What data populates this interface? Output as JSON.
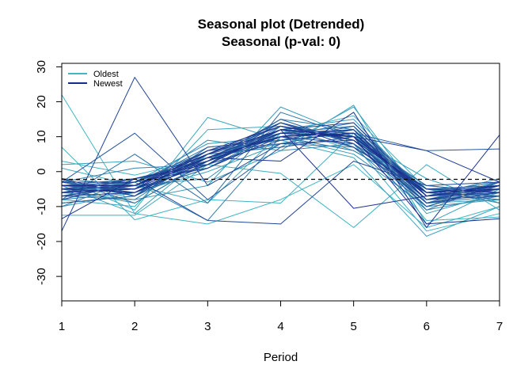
{
  "chart_data": {
    "type": "line",
    "title": "Seasonal plot (Detrended)",
    "subtitle": "Seasonal (p-val: 0)",
    "xlabel": "Period",
    "ylabel": "",
    "x": [
      1,
      2,
      3,
      4,
      5,
      6,
      7
    ],
    "xlim": [
      1,
      7
    ],
    "ylim": [
      -37,
      31
    ],
    "x_ticks": [
      "1",
      "2",
      "3",
      "4",
      "5",
      "6",
      "7"
    ],
    "y_ticks": [
      -30,
      -20,
      -10,
      0,
      10,
      20,
      30
    ],
    "grid": false,
    "reference_line": {
      "y": -2.2,
      "style": "dashed"
    },
    "legend": {
      "position": "top-left",
      "entries": [
        {
          "label": "Oldest",
          "color": "#41b6c4"
        },
        {
          "label": "Newest",
          "color": "#1a2a8c"
        }
      ]
    },
    "colors": {
      "oldest": "#41b6c4",
      "newest": "#1a2a8c"
    },
    "series": [
      {
        "values": [
          22,
          -12,
          -15,
          -8,
          2,
          -16,
          -10
        ]
      },
      {
        "values": [
          7,
          -13.8,
          -8,
          -9,
          11,
          -14,
          -13
        ]
      },
      {
        "values": [
          3,
          -1,
          4,
          10,
          8,
          -17,
          -12
        ]
      },
      {
        "values": [
          -12.5,
          -12.5,
          2,
          -0.5,
          -16,
          2,
          -11
        ]
      },
      {
        "values": [
          1,
          -4,
          -9,
          11,
          16,
          -5,
          -7
        ]
      },
      {
        "values": [
          -8,
          -10,
          12,
          13,
          6,
          -6,
          -3
        ]
      },
      {
        "values": [
          -2,
          -11,
          15.5,
          9,
          4,
          -18.5,
          -10
        ]
      },
      {
        "values": [
          -4,
          -12,
          5,
          7,
          18.5,
          -9,
          -8
        ]
      },
      {
        "values": [
          2,
          3,
          -3,
          6,
          19,
          -15,
          -5
        ]
      },
      {
        "values": [
          -6,
          -8,
          -4,
          18.5,
          10,
          -2,
          -9
        ]
      },
      {
        "values": [
          -10,
          -6,
          0,
          8,
          12,
          -12,
          -6
        ]
      },
      {
        "values": [
          -3,
          -5,
          2,
          12,
          15,
          -7,
          -5
        ]
      },
      {
        "values": [
          -7,
          -3,
          8,
          10,
          5,
          -10,
          -8
        ]
      },
      {
        "values": [
          -5,
          -9,
          3,
          14,
          9,
          -4,
          -6
        ]
      },
      {
        "values": [
          -9,
          -7,
          6,
          9,
          11,
          -8,
          -3
        ]
      },
      {
        "values": [
          -4,
          -2,
          1,
          11,
          13,
          -11,
          -7
        ]
      },
      {
        "values": [
          -6,
          -5,
          9,
          6,
          8,
          -6,
          -4
        ]
      },
      {
        "values": [
          -2,
          -4,
          -2,
          13,
          10,
          -9,
          -5
        ]
      },
      {
        "values": [
          -8,
          -6,
          4,
          8,
          7,
          -5,
          -9
        ]
      },
      {
        "values": [
          -3,
          1,
          2,
          15,
          12,
          -7,
          -2
        ]
      },
      {
        "values": [
          -5,
          -3,
          -14,
          10,
          14,
          -6,
          -5
        ]
      },
      {
        "values": [
          -7,
          -8,
          5,
          7,
          10,
          -10,
          -4
        ]
      },
      {
        "values": [
          -4,
          -6,
          1,
          12,
          9,
          -8,
          -6
        ]
      },
      {
        "values": [
          -10,
          -2,
          3,
          10,
          6,
          -6,
          -3
        ]
      },
      {
        "values": [
          -6,
          -4,
          7,
          9,
          11,
          -9,
          -7
        ]
      },
      {
        "values": [
          -3,
          -7,
          2,
          14,
          8,
          -5,
          -4
        ]
      },
      {
        "values": [
          -5,
          -5,
          4,
          11,
          13,
          -7,
          -5
        ]
      },
      {
        "values": [
          -8,
          5,
          -9,
          17,
          10,
          -4,
          -6
        ]
      },
      {
        "values": [
          -2,
          -9,
          3,
          12,
          7,
          -11,
          -3
        ]
      },
      {
        "values": [
          -6,
          -3,
          6,
          8,
          12,
          -6,
          -8
        ]
      },
      {
        "values": [
          -4,
          -5,
          2,
          13,
          9,
          -8,
          -4
        ]
      },
      {
        "values": [
          -7,
          -4,
          5,
          10,
          11,
          -5,
          -5
        ]
      },
      {
        "values": [
          -3,
          -6,
          1,
          11,
          10,
          -7,
          -6
        ]
      },
      {
        "values": [
          -5,
          -2,
          3,
          15,
          8,
          -9,
          -3
        ]
      },
      {
        "values": [
          -9,
          -7,
          7,
          9,
          13,
          -6,
          -7
        ]
      },
      {
        "values": [
          -4,
          -3,
          4,
          12,
          11,
          6,
          6.5
        ]
      },
      {
        "values": [
          -6,
          -5,
          2,
          14,
          9,
          -8,
          -5
        ]
      },
      {
        "values": [
          -3,
          11,
          -8,
          7,
          10,
          -5,
          -4
        ]
      },
      {
        "values": [
          -7,
          -4,
          6,
          11,
          12,
          -7,
          -6
        ]
      },
      {
        "values": [
          -5,
          -6,
          3,
          10,
          8,
          -10,
          -4
        ]
      },
      {
        "values": [
          -8,
          -3,
          5,
          13,
          10,
          -6,
          -5
        ]
      },
      {
        "values": [
          -4,
          -5,
          2,
          9,
          11,
          -8,
          -7
        ]
      },
      {
        "values": [
          -6,
          -2,
          -14,
          -15,
          3,
          -4,
          -3
        ]
      },
      {
        "values": [
          -2,
          -7,
          4,
          12,
          14,
          -7,
          -5
        ]
      },
      {
        "values": [
          -17,
          27,
          -4,
          8,
          9,
          -9,
          -6
        ]
      },
      {
        "values": [
          -5,
          -4,
          3,
          11,
          10,
          6,
          -3
        ]
      },
      {
        "values": [
          -7,
          -6,
          5,
          14,
          7,
          -6,
          -4
        ]
      },
      {
        "values": [
          -3,
          -3,
          1,
          10,
          12,
          -8,
          -5
        ]
      },
      {
        "values": [
          -6,
          -5,
          6,
          13,
          9,
          -5,
          -6
        ]
      },
      {
        "values": [
          -4,
          -4,
          4,
          3,
          17,
          -16,
          10.5
        ]
      },
      {
        "values": [
          -13.5,
          -2,
          2,
          12,
          -10.5,
          -7,
          -4
        ]
      },
      {
        "values": [
          -5,
          -6,
          3,
          11,
          10,
          -15,
          -13.5
        ]
      },
      {
        "values": [
          -6,
          -5,
          4,
          10,
          11,
          -7,
          -4
        ]
      },
      {
        "values": [
          -4,
          -4,
          5,
          12,
          10,
          -6,
          -5
        ]
      }
    ]
  }
}
